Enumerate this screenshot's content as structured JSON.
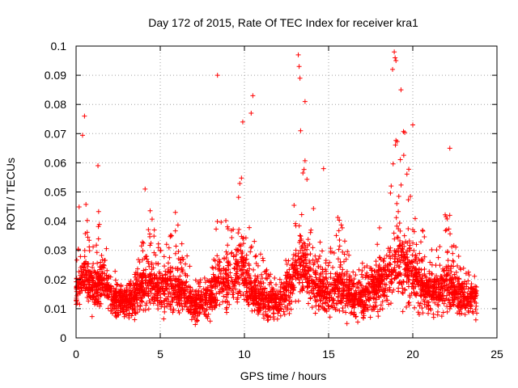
{
  "chart_data": {
    "type": "scatter",
    "title": "Day 172 of 2015, Rate Of TEC Index for receiver kra1",
    "xlabel": "GPS time / hours",
    "ylabel": "ROTI / TECUs",
    "xlim": [
      0,
      25
    ],
    "ylim": [
      0,
      0.1
    ],
    "x_ticks": [
      "0",
      "5",
      "10",
      "15",
      "20",
      "25"
    ],
    "y_ticks": [
      "0",
      "0.01",
      "0.02",
      "0.03",
      "0.04",
      "0.05",
      "0.06",
      "0.07",
      "0.08",
      "0.09",
      "0.1"
    ],
    "grid": true,
    "marker": "+",
    "color": "#ff0000",
    "series": [
      {
        "x_range": [
          0.0,
          23.8
        ],
        "profile": [
          [
            0.0,
            0.016,
            0.012,
            0.032
          ],
          [
            0.4,
            0.022,
            0.015,
            0.072
          ],
          [
            0.7,
            0.018,
            0.012,
            0.04
          ],
          [
            1.2,
            0.016,
            0.01,
            0.048
          ],
          [
            1.6,
            0.02,
            0.013,
            0.035
          ],
          [
            2.2,
            0.013,
            0.008,
            0.025
          ],
          [
            3.0,
            0.012,
            0.007,
            0.018
          ],
          [
            3.5,
            0.014,
            0.008,
            0.022
          ],
          [
            4.0,
            0.018,
            0.01,
            0.035
          ],
          [
            4.3,
            0.02,
            0.012,
            0.048
          ],
          [
            5.0,
            0.016,
            0.01,
            0.03
          ],
          [
            5.7,
            0.017,
            0.01,
            0.036
          ],
          [
            6.2,
            0.016,
            0.009,
            0.04
          ],
          [
            7.0,
            0.011,
            0.006,
            0.02
          ],
          [
            8.0,
            0.014,
            0.008,
            0.022
          ],
          [
            8.5,
            0.018,
            0.01,
            0.05
          ],
          [
            9.3,
            0.02,
            0.012,
            0.038
          ],
          [
            9.8,
            0.024,
            0.014,
            0.068
          ],
          [
            10.3,
            0.016,
            0.01,
            0.04
          ],
          [
            11.0,
            0.013,
            0.008,
            0.028
          ],
          [
            12.0,
            0.012,
            0.007,
            0.02
          ],
          [
            12.8,
            0.018,
            0.01,
            0.032
          ],
          [
            13.3,
            0.026,
            0.015,
            0.08
          ],
          [
            13.8,
            0.02,
            0.012,
            0.06
          ],
          [
            14.3,
            0.017,
            0.01,
            0.04
          ],
          [
            15.0,
            0.014,
            0.008,
            0.025
          ],
          [
            15.5,
            0.018,
            0.01,
            0.05
          ],
          [
            16.5,
            0.013,
            0.007,
            0.022
          ],
          [
            17.5,
            0.016,
            0.009,
            0.03
          ],
          [
            18.5,
            0.02,
            0.012,
            0.045
          ],
          [
            19.2,
            0.026,
            0.015,
            0.085
          ],
          [
            19.8,
            0.022,
            0.012,
            0.06
          ],
          [
            20.5,
            0.018,
            0.01,
            0.038
          ],
          [
            21.2,
            0.015,
            0.009,
            0.03
          ],
          [
            22.0,
            0.018,
            0.01,
            0.045
          ],
          [
            22.5,
            0.016,
            0.009,
            0.04
          ],
          [
            23.0,
            0.014,
            0.008,
            0.024
          ],
          [
            23.8,
            0.014,
            0.008,
            0.022
          ]
        ],
        "outliers": [
          [
            8.4,
            0.09
          ],
          [
            10.5,
            0.083
          ],
          [
            10.4,
            0.077
          ],
          [
            13.2,
            0.097
          ],
          [
            13.25,
            0.093
          ],
          [
            13.3,
            0.089
          ],
          [
            13.6,
            0.081
          ],
          [
            18.9,
            0.098
          ],
          [
            18.95,
            0.096
          ],
          [
            19.0,
            0.095
          ],
          [
            18.8,
            0.092
          ],
          [
            19.3,
            0.085
          ],
          [
            20.0,
            0.073
          ],
          [
            22.2,
            0.065
          ],
          [
            0.5,
            0.076
          ],
          [
            9.9,
            0.074
          ],
          [
            1.3,
            0.059
          ],
          [
            4.1,
            0.051
          ],
          [
            5.9,
            0.043
          ],
          [
            14.7,
            0.058
          ]
        ],
        "n": 3600
      }
    ]
  }
}
